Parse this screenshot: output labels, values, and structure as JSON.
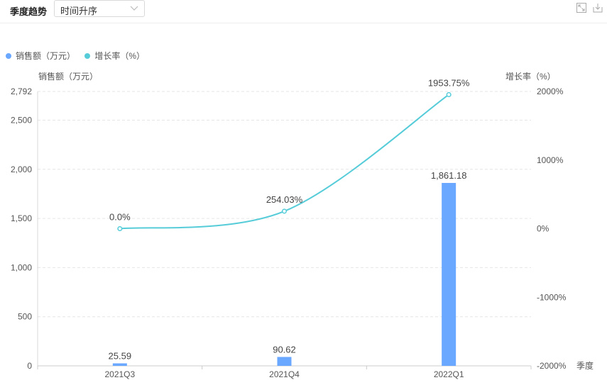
{
  "header": {
    "title": "季度趋势",
    "sort_select_value": "时间升序"
  },
  "colors": {
    "bar": "#6aa7ff",
    "line": "#56ccd9"
  },
  "icons": {
    "expand": "expand-icon",
    "download": "download-icon",
    "chevron": "chevron-down-icon"
  },
  "chart_data": {
    "type": "bar",
    "categories": [
      "2021Q3",
      "2021Q4",
      "2022Q1"
    ],
    "series": [
      {
        "name": "销售额（万元）",
        "type": "bar",
        "axis": "left",
        "values": [
          25.59,
          90.62,
          1861.18
        ],
        "labels": [
          "25.59",
          "90.62",
          "1,861.18"
        ]
      },
      {
        "name": "增长率（%）",
        "type": "line",
        "axis": "right",
        "values": [
          0.0,
          254.03,
          1953.75
        ],
        "labels": [
          "0.0%",
          "254.03%",
          "1953.75%"
        ]
      }
    ],
    "xlabel": "季度",
    "ylabel_left": "销售额（万元）",
    "ylabel_right": "增长率（%）",
    "ylim_left": [
      0,
      2792
    ],
    "yticks_left": [
      "0",
      "500",
      "1,000",
      "1,500",
      "2,000",
      "2,500",
      "2,792"
    ],
    "yticks_left_values": [
      0,
      500,
      1000,
      1500,
      2000,
      2500,
      2792
    ],
    "ylim_right": [
      -2000,
      2000
    ],
    "yticks_right": [
      "-2000%",
      "-1000%",
      "0%",
      "1000%",
      "2000%"
    ],
    "yticks_right_values": [
      -2000,
      -1000,
      0,
      1000,
      2000
    ],
    "grid": true,
    "legend_position": "top-left"
  }
}
